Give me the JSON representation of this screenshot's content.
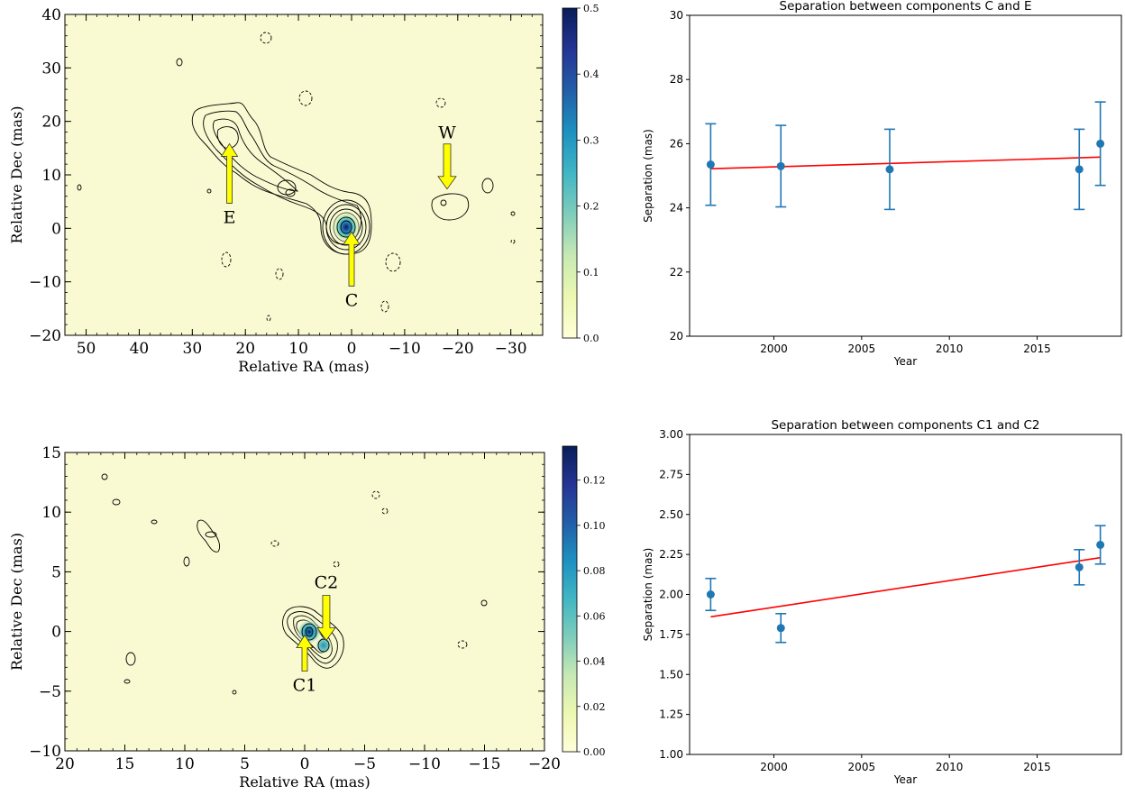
{
  "colors": {
    "map_background": "#fafad2",
    "colormap": [
      "#ffffd9",
      "#edf8b1",
      "#c7e9b4",
      "#7fcdbb",
      "#41b6c4",
      "#1d91c0",
      "#225ea8",
      "#253494",
      "#081d58"
    ],
    "contour": "#000000",
    "arrow_fill": "#ffff00",
    "arrow_stroke": "#333333",
    "errorbar_points": "#1f77b4",
    "fit_line": "#ff0000"
  },
  "chart_data": [
    {
      "type": "heatmap",
      "panel": "top-left",
      "xlabel": "Relative RA (mas)",
      "ylabel": "Relative Dec (mas)",
      "xlim": [
        54,
        -36
      ],
      "ylim": [
        -20,
        40
      ],
      "xticks": [
        50,
        40,
        30,
        20,
        10,
        0,
        -10,
        -20,
        -30
      ],
      "yticks": [
        -20,
        -10,
        0,
        10,
        20,
        30,
        40
      ],
      "colorbar": {
        "min": 0.0,
        "max": 0.5,
        "ticks": [
          0.0,
          0.1,
          0.2,
          0.3,
          0.4,
          0.5
        ]
      },
      "peak": {
        "ra": 0,
        "dec": 0,
        "value": 0.5
      },
      "components": [
        {
          "label": "E",
          "ra": 23,
          "dec": 16.5
        },
        {
          "label": "C",
          "ra": 0,
          "dec": 0
        },
        {
          "label": "W",
          "ra": -18,
          "dec": 6
        }
      ]
    },
    {
      "type": "scatter",
      "panel": "top-right",
      "title": "Separation between components C and E",
      "xlabel": "Year",
      "ylabel": "Separation (mas)",
      "xlim": [
        1995.2,
        2019.8
      ],
      "ylim": [
        20,
        30
      ],
      "xticks": [
        2000,
        2005,
        2010,
        2015
      ],
      "yticks": [
        20,
        22,
        24,
        26,
        28,
        30
      ],
      "grid": false,
      "points": [
        {
          "x": 1996.4,
          "y": 25.35,
          "err": 1.27
        },
        {
          "x": 2000.4,
          "y": 25.3,
          "err": 1.27
        },
        {
          "x": 2006.6,
          "y": 25.2,
          "err": 1.25
        },
        {
          "x": 2017.4,
          "y": 25.2,
          "err": 1.25
        },
        {
          "x": 2018.6,
          "y": 26.0,
          "err": 1.3
        }
      ],
      "fit_line": {
        "x": [
          1996.4,
          2018.6
        ],
        "y": [
          25.22,
          25.58
        ]
      }
    },
    {
      "type": "heatmap",
      "panel": "bottom-left",
      "xlabel": "Relative RA (mas)",
      "ylabel": "Relative Dec (mas)",
      "xlim": [
        20,
        -20
      ],
      "ylim": [
        -10,
        15
      ],
      "xticks": [
        20,
        15,
        10,
        5,
        0,
        -5,
        -10,
        -15,
        -20
      ],
      "yticks": [
        -10,
        -5,
        0,
        5,
        10,
        15
      ],
      "colorbar": {
        "min": 0.0,
        "max": 0.135,
        "ticks": [
          0.0,
          0.02,
          0.04,
          0.06,
          0.08,
          0.1,
          0.12
        ]
      },
      "peak": {
        "ra": 0,
        "dec": 0,
        "value": 0.135
      },
      "components": [
        {
          "label": "C1",
          "ra": 0,
          "dec": 0
        },
        {
          "label": "C2",
          "ra": -1.8,
          "dec": -1.2
        }
      ]
    },
    {
      "type": "scatter",
      "panel": "bottom-right",
      "title": "Separation between components C1 and C2",
      "xlabel": "Year",
      "ylabel": "Separation (mas)",
      "xlim": [
        1995.2,
        2019.8
      ],
      "ylim": [
        1.0,
        3.0
      ],
      "xticks": [
        2000,
        2005,
        2010,
        2015
      ],
      "yticks": [
        1.0,
        1.25,
        1.5,
        1.75,
        2.0,
        2.25,
        2.5,
        2.75,
        3.0
      ],
      "grid": false,
      "points": [
        {
          "x": 1996.4,
          "y": 2.0,
          "err": 0.1
        },
        {
          "x": 2000.4,
          "y": 1.79,
          "err": 0.09
        },
        {
          "x": 2017.4,
          "y": 2.17,
          "err": 0.11
        },
        {
          "x": 2018.6,
          "y": 2.31,
          "err": 0.12
        }
      ],
      "fit_line": {
        "x": [
          1996.4,
          2018.6
        ],
        "y": [
          1.86,
          2.23
        ]
      }
    }
  ]
}
